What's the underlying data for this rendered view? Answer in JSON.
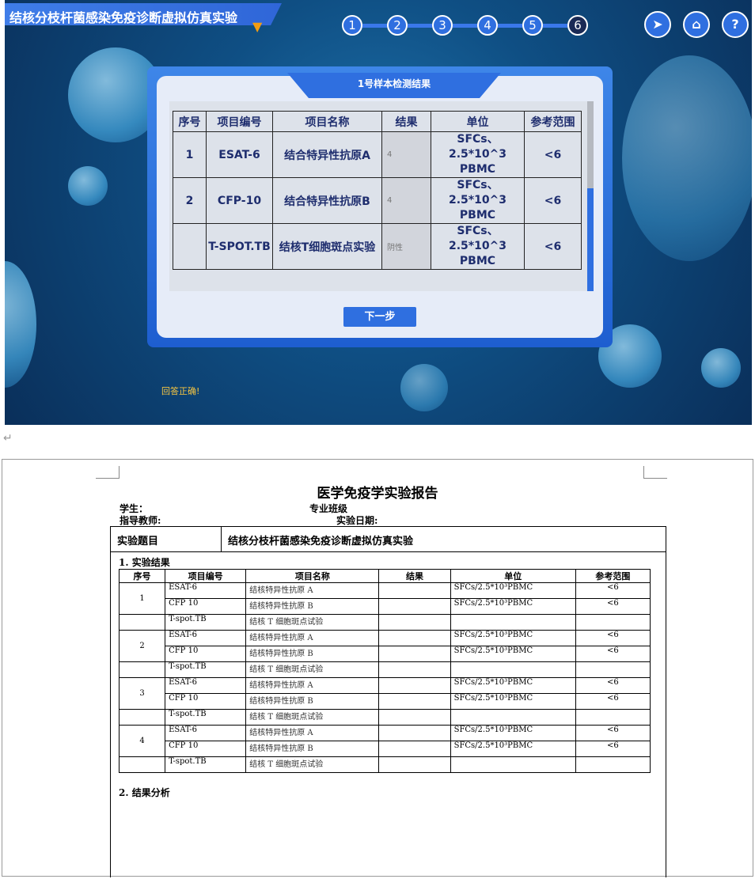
{
  "sim": {
    "title": "结核分枝杆菌感染免疫诊断虚拟仿真实验",
    "steps": [
      "1",
      "2",
      "3",
      "4",
      "5",
      "6"
    ],
    "current_step": 6,
    "icons": [
      "navigate-icon",
      "home-icon",
      "help-icon"
    ],
    "dialog": {
      "title": "1号样本检测结果",
      "headers": [
        "序号",
        "项目编号",
        "项目名称",
        "结果",
        "单位",
        "参考范围"
      ],
      "rows": [
        {
          "no": "1",
          "code": "ESAT-6",
          "name": "结合特异性抗原A",
          "result": "4",
          "unit": "SFCs、2.5*10^3 PBMC",
          "range": "<6"
        },
        {
          "no": "2",
          "code": "CFP-10",
          "name": "结合特异性抗原B",
          "result": "4",
          "unit": "SFCs、2.5*10^3 PBMC",
          "range": "<6"
        },
        {
          "no": "",
          "code": "T-SPOT.TB",
          "name": "结核T细胞斑点实验",
          "result": "阴性",
          "unit": "SFCs、2.5*10^3 PBMC",
          "range": "<6"
        }
      ],
      "next_label": "下一步"
    },
    "status": "回答正确!",
    "accent": "#2f6fe0"
  },
  "doc": {
    "return_mark": "↵",
    "title": "医学免疫学实验报告",
    "student": "学生：",
    "class": "专业班级",
    "teacher": "指导教师:",
    "date": "实验日期:",
    "topic_label": "实验题目",
    "topic": "结核分枝杆菌感染免疫诊断虚拟仿真实验",
    "section1": "1. 实验结果",
    "headers": [
      "序号",
      "项目编号",
      "项目名称",
      "结果",
      "单位",
      "参考范围"
    ],
    "groups": [
      {
        "no": "1",
        "items": [
          [
            "ESAT-6",
            "结核特异性抗原 A",
            "",
            "SFCs/2.5*10³PBMC",
            "<6"
          ],
          [
            "CFP 10",
            "结核特异性抗原 B",
            "",
            "SFCs/2.5*10³PBMC",
            "<6"
          ],
          [
            "T-spot.TB",
            "结核 T 细胞斑点试验",
            "",
            "",
            ""
          ]
        ]
      },
      {
        "no": "2",
        "items": [
          [
            "ESAT-6",
            "结核特异性抗原 A",
            "",
            "SFCs/2.5*10³PBMC",
            "<6"
          ],
          [
            "CFP 10",
            "结核特异性抗原 B",
            "",
            "SFCs/2.5*10³PBMC",
            "<6"
          ],
          [
            "T-spot.TB",
            "结核 T 细胞斑点试验",
            "",
            "",
            ""
          ]
        ]
      },
      {
        "no": "3",
        "items": [
          [
            "ESAT-6",
            "结核特异性抗原 A",
            "",
            "SFCs/2.5*10³PBMC",
            "<6"
          ],
          [
            "CFP 10",
            "结核特异性抗原 B",
            "",
            "SFCs/2.5*10³PBMC",
            "<6"
          ],
          [
            "T-spot.TB",
            "结核 T 细胞斑点试验",
            "",
            "",
            ""
          ]
        ]
      },
      {
        "no": "4",
        "items": [
          [
            "ESAT-6",
            "结核特异性抗原 A",
            "",
            "SFCs/2.5*10³PBMC",
            "<6"
          ],
          [
            "CFP 10",
            "结核特异性抗原 B",
            "",
            "SFCs/2.5*10³PBMC",
            "<6"
          ],
          [
            "T-spot.TB",
            "结核 T 细胞斑点试验",
            "",
            "",
            ""
          ]
        ]
      }
    ],
    "section2": "2. 结果分析"
  }
}
